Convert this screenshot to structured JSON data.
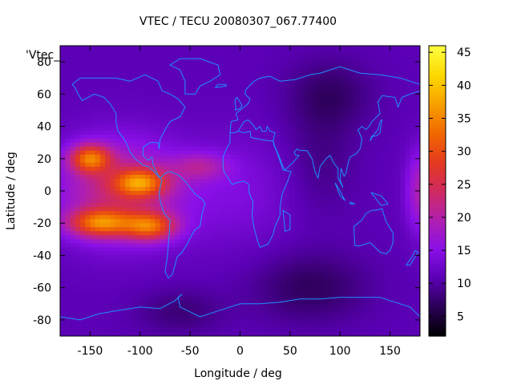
{
  "chart_data": {
    "type": "heatmap",
    "title": "VTEC / TECU 20080307_067.77400",
    "xlabel": "Longitude / deg",
    "ylabel": "Latitude / deg",
    "legend_label": "'Vtec_",
    "xlim": [
      -180,
      180
    ],
    "ylim": [
      -90,
      90
    ],
    "x_ticks": [
      -150,
      -100,
      -50,
      0,
      50,
      100,
      150
    ],
    "y_ticks": [
      -80,
      -60,
      -40,
      -20,
      0,
      20,
      40,
      60,
      80
    ],
    "colorbar": {
      "range": [
        2,
        46
      ],
      "ticks": [
        5,
        10,
        15,
        20,
        25,
        30,
        35,
        40,
        45
      ],
      "palette": [
        "#000000",
        "#2a0054",
        "#5a00b4",
        "#8a10e8",
        "#b020b0",
        "#d02a60",
        "#e43a20",
        "#f06800",
        "#f8a000",
        "#fcd800",
        "#ffff40"
      ]
    },
    "background_level": 11,
    "coastline_color": "#1e90ff",
    "features": [
      {
        "lon": -150,
        "lat": 20,
        "value": 42,
        "sigma_lon": 14,
        "sigma_lat": 6
      },
      {
        "lon": -100,
        "lat": 5,
        "value": 40,
        "sigma_lon": 18,
        "sigma_lat": 6
      },
      {
        "lon": -140,
        "lat": -20,
        "value": 42,
        "sigma_lon": 22,
        "sigma_lat": 6
      },
      {
        "lon": -90,
        "lat": -22,
        "value": 40,
        "sigma_lon": 18,
        "sigma_lat": 6
      },
      {
        "lon": -120,
        "lat": 0,
        "value": 30,
        "sigma_lon": 45,
        "sigma_lat": 22
      },
      {
        "lon": -40,
        "lat": 15,
        "value": 22,
        "sigma_lon": 20,
        "sigma_lat": 6
      },
      {
        "lon": 180,
        "lat": 0,
        "value": 25,
        "sigma_lon": 10,
        "sigma_lat": 18
      },
      {
        "lon": 0,
        "lat": 0,
        "value": 16,
        "sigma_lon": 40,
        "sigma_lat": 25
      },
      {
        "lon": 70,
        "lat": -60,
        "value": 4,
        "sigma_lon": 40,
        "sigma_lat": 15
      },
      {
        "lon": 90,
        "lat": 60,
        "value": 5,
        "sigma_lon": 30,
        "sigma_lat": 15
      },
      {
        "lon": 80,
        "lat": 20,
        "value": 7,
        "sigma_lon": 25,
        "sigma_lat": 25
      },
      {
        "lon": -60,
        "lat": -75,
        "value": 6,
        "sigma_lon": 30,
        "sigma_lat": 10
      }
    ],
    "coastlines": [
      [
        [
          -168,
          66
        ],
        [
          -160,
          70
        ],
        [
          -140,
          70
        ],
        [
          -125,
          70
        ],
        [
          -110,
          68
        ],
        [
          -95,
          72
        ],
        [
          -82,
          68
        ],
        [
          -78,
          62
        ],
        [
          -70,
          60
        ],
        [
          -62,
          57
        ],
        [
          -55,
          52
        ],
        [
          -60,
          46
        ],
        [
          -70,
          43
        ],
        [
          -75,
          38
        ],
        [
          -80,
          32
        ],
        [
          -81,
          26
        ],
        [
          -82,
          30
        ],
        [
          -90,
          30
        ],
        [
          -97,
          27
        ],
        [
          -97,
          22
        ],
        [
          -92,
          19
        ],
        [
          -88,
          21
        ],
        [
          -87,
          16
        ],
        [
          -83,
          11
        ],
        [
          -80,
          8
        ],
        [
          -78,
          9
        ],
        [
          -75,
          11
        ],
        [
          -70,
          12
        ],
        [
          -62,
          10
        ],
        [
          -55,
          6
        ],
        [
          -50,
          2
        ],
        [
          -45,
          -2
        ],
        [
          -38,
          -5
        ],
        [
          -35,
          -8
        ],
        [
          -38,
          -14
        ],
        [
          -40,
          -22
        ],
        [
          -45,
          -24
        ],
        [
          -48,
          -27
        ],
        [
          -53,
          -33
        ],
        [
          -58,
          -38
        ],
        [
          -63,
          -41
        ],
        [
          -65,
          -46
        ],
        [
          -68,
          -52
        ],
        [
          -72,
          -54
        ],
        [
          -75,
          -50
        ],
        [
          -73,
          -42
        ],
        [
          -72,
          -35
        ],
        [
          -71,
          -28
        ],
        [
          -70,
          -18
        ],
        [
          -76,
          -14
        ],
        [
          -80,
          -6
        ],
        [
          -81,
          -2
        ],
        [
          -80,
          2
        ],
        [
          -78,
          7
        ],
        [
          -82,
          9
        ],
        [
          -86,
          12
        ],
        [
          -92,
          15
        ],
        [
          -97,
          16
        ],
        [
          -105,
          20
        ],
        [
          -110,
          24
        ],
        [
          -114,
          30
        ],
        [
          -117,
          33
        ],
        [
          -122,
          37
        ],
        [
          -124,
          42
        ],
        [
          -124,
          48
        ],
        [
          -130,
          54
        ],
        [
          -136,
          58
        ],
        [
          -146,
          60
        ],
        [
          -152,
          58
        ],
        [
          -158,
          56
        ],
        [
          -162,
          60
        ],
        [
          -165,
          64
        ],
        [
          -168,
          66
        ]
      ],
      [
        [
          -55,
          60
        ],
        [
          -45,
          60
        ],
        [
          -40,
          65
        ],
        [
          -30,
          68
        ],
        [
          -20,
          72
        ],
        [
          -22,
          78
        ],
        [
          -40,
          82
        ],
        [
          -60,
          82
        ],
        [
          -70,
          78
        ],
        [
          -60,
          75
        ],
        [
          -55,
          68
        ],
        [
          -55,
          60
        ]
      ],
      [
        [
          -10,
          36
        ],
        [
          -6,
          36
        ],
        [
          -2,
          37
        ],
        [
          4,
          36
        ],
        [
          10,
          37
        ],
        [
          11,
          33
        ],
        [
          20,
          32
        ],
        [
          30,
          31
        ],
        [
          33,
          31
        ],
        [
          35,
          27
        ],
        [
          38,
          22
        ],
        [
          43,
          13
        ],
        [
          51,
          12
        ],
        [
          47,
          5
        ],
        [
          42,
          -2
        ],
        [
          40,
          -10
        ],
        [
          40,
          -15
        ],
        [
          35,
          -22
        ],
        [
          33,
          -27
        ],
        [
          28,
          -33
        ],
        [
          20,
          -35
        ],
        [
          18,
          -32
        ],
        [
          14,
          -23
        ],
        [
          12,
          -15
        ],
        [
          13,
          -7
        ],
        [
          9,
          -1
        ],
        [
          9,
          4
        ],
        [
          4,
          6
        ],
        [
          -4,
          5
        ],
        [
          -8,
          4
        ],
        [
          -12,
          8
        ],
        [
          -16,
          12
        ],
        [
          -17,
          15
        ],
        [
          -17,
          21
        ],
        [
          -13,
          27
        ],
        [
          -10,
          30
        ],
        [
          -10,
          36
        ]
      ],
      [
        [
          -10,
          36
        ],
        [
          -9,
          43
        ],
        [
          -2,
          44
        ],
        [
          -4,
          48
        ],
        [
          2,
          51
        ],
        [
          8,
          54
        ],
        [
          10,
          57
        ],
        [
          5,
          60
        ],
        [
          6,
          63
        ],
        [
          14,
          68
        ],
        [
          20,
          70
        ],
        [
          30,
          71
        ],
        [
          40,
          68
        ],
        [
          55,
          69
        ],
        [
          70,
          72
        ],
        [
          80,
          73
        ],
        [
          100,
          77
        ],
        [
          120,
          73
        ],
        [
          140,
          72
        ],
        [
          160,
          70
        ],
        [
          170,
          68
        ],
        [
          180,
          66
        ]
      ],
      [
        [
          180,
          62
        ],
        [
          170,
          60
        ],
        [
          162,
          58
        ],
        [
          158,
          52
        ],
        [
          155,
          58
        ],
        [
          142,
          59
        ],
        [
          138,
          55
        ],
        [
          140,
          48
        ],
        [
          132,
          43
        ],
        [
          129,
          40
        ],
        [
          126,
          38
        ],
        [
          122,
          40
        ],
        [
          118,
          38
        ],
        [
          122,
          32
        ],
        [
          120,
          26
        ],
        [
          116,
          23
        ],
        [
          110,
          21
        ],
        [
          108,
          17
        ],
        [
          106,
          11
        ],
        [
          104,
          9
        ],
        [
          101,
          14
        ],
        [
          100,
          7
        ],
        [
          103,
          2
        ],
        [
          98,
          8
        ],
        [
          98,
          14
        ],
        [
          94,
          17
        ],
        [
          90,
          22
        ],
        [
          86,
          20
        ],
        [
          80,
          15
        ],
        [
          78,
          8
        ],
        [
          75,
          12
        ],
        [
          72,
          20
        ],
        [
          70,
          22
        ],
        [
          67,
          25
        ],
        [
          60,
          25
        ],
        [
          57,
          26
        ],
        [
          54,
          24
        ],
        [
          56,
          22
        ],
        [
          59,
          22
        ],
        [
          52,
          17
        ],
        [
          45,
          13
        ],
        [
          43,
          15
        ],
        [
          40,
          20
        ],
        [
          36,
          26
        ],
        [
          34,
          28
        ],
        [
          33,
          31
        ],
        [
          35,
          36
        ],
        [
          30,
          37
        ],
        [
          27,
          40
        ],
        [
          26,
          37
        ],
        [
          22,
          37
        ],
        [
          20,
          40
        ],
        [
          16,
          38
        ],
        [
          13,
          41
        ],
        [
          8,
          44
        ],
        [
          4,
          43
        ],
        [
          -2,
          37
        ]
      ],
      [
        [
          114,
          -22
        ],
        [
          114,
          -26
        ],
        [
          115,
          -34
        ],
        [
          120,
          -34
        ],
        [
          130,
          -32
        ],
        [
          135,
          -35
        ],
        [
          140,
          -38
        ],
        [
          146,
          -39
        ],
        [
          150,
          -37
        ],
        [
          153,
          -32
        ],
        [
          153,
          -26
        ],
        [
          146,
          -19
        ],
        [
          142,
          -11
        ],
        [
          136,
          -12
        ],
        [
          132,
          -12
        ],
        [
          126,
          -14
        ],
        [
          122,
          -18
        ],
        [
          114,
          -22
        ]
      ],
      [
        [
          -180,
          -78
        ],
        [
          -160,
          -80
        ],
        [
          -140,
          -76
        ],
        [
          -120,
          -74
        ],
        [
          -100,
          -72
        ],
        [
          -80,
          -73
        ],
        [
          -65,
          -68
        ],
        [
          -58,
          -64
        ],
        [
          -62,
          -66
        ],
        [
          -60,
          -72
        ],
        [
          -40,
          -78
        ],
        [
          -20,
          -74
        ],
        [
          0,
          -70
        ],
        [
          20,
          -70
        ],
        [
          40,
          -69
        ],
        [
          60,
          -67
        ],
        [
          80,
          -67
        ],
        [
          100,
          -66
        ],
        [
          120,
          -66
        ],
        [
          140,
          -66
        ],
        [
          160,
          -70
        ],
        [
          170,
          -72
        ],
        [
          180,
          -78
        ]
      ],
      [
        [
          -5,
          50
        ],
        [
          0,
          51
        ],
        [
          2,
          53
        ],
        [
          -1,
          56
        ],
        [
          -3,
          58
        ],
        [
          -5,
          57
        ],
        [
          -5,
          54
        ],
        [
          -4,
          52
        ],
        [
          -5,
          50
        ]
      ],
      [
        [
          43,
          -12
        ],
        [
          50,
          -15
        ],
        [
          50,
          -24
        ],
        [
          45,
          -25
        ],
        [
          44,
          -18
        ],
        [
          43,
          -12
        ]
      ],
      [
        [
          130,
          31
        ],
        [
          132,
          34
        ],
        [
          136,
          34
        ],
        [
          140,
          36
        ],
        [
          141,
          41
        ],
        [
          142,
          44
        ],
        [
          140,
          43
        ],
        [
          138,
          38
        ],
        [
          134,
          35
        ],
        [
          130,
          31
        ]
      ],
      [
        [
          166,
          -46
        ],
        [
          172,
          -41
        ],
        [
          175,
          -37
        ],
        [
          178,
          -38
        ],
        [
          174,
          -42
        ],
        [
          170,
          -46
        ],
        [
          166,
          -46
        ]
      ],
      [
        [
          95,
          5
        ],
        [
          100,
          0
        ],
        [
          105,
          -6
        ],
        [
          100,
          -3
        ],
        [
          95,
          5
        ]
      ],
      [
        [
          110,
          -7
        ],
        [
          115,
          -8
        ],
        [
          110,
          -8
        ],
        [
          110,
          -7
        ]
      ],
      [
        [
          131,
          -1
        ],
        [
          141,
          -3
        ],
        [
          148,
          -8
        ],
        [
          141,
          -9
        ],
        [
          136,
          -5
        ],
        [
          131,
          -1
        ]
      ],
      [
        [
          -25,
          64
        ],
        [
          -14,
          65
        ],
        [
          -14,
          66
        ],
        [
          -22,
          66
        ],
        [
          -25,
          64
        ]
      ]
    ]
  }
}
